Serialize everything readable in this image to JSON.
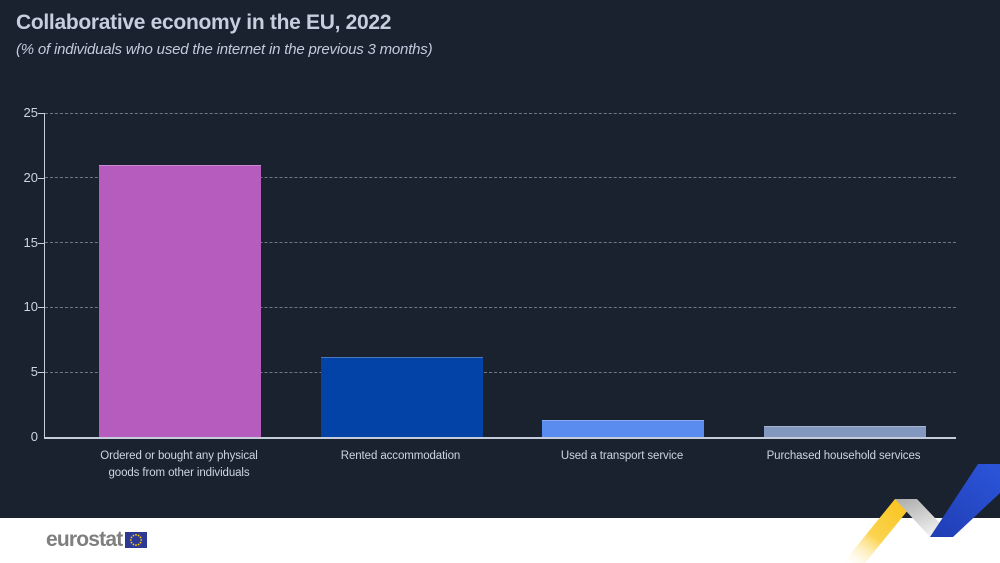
{
  "header": {
    "title": "Collaborative economy in the EU, 2022",
    "subtitle": "(% of individuals who used the internet in the previous 3 months)"
  },
  "chart_data": {
    "type": "bar",
    "categories": [
      "Ordered or bought any physical goods from other individuals",
      "Rented accommodation",
      "Used a transport service",
      "Purchased household services"
    ],
    "values": [
      20.9,
      6.1,
      1.2,
      0.8
    ],
    "bar_colors": [
      "#b55cbe",
      "#0343a8",
      "#5a8bef",
      "#8398bf"
    ],
    "title": "Collaborative economy in the EU, 2022",
    "subtitle": "(% of individuals who used the internet in the previous 3 months)",
    "xlabel": "",
    "ylabel": "",
    "ylim": [
      0,
      25
    ],
    "yticks": [
      0,
      5,
      10,
      15,
      20,
      25
    ],
    "grid": "horizontal-dashed",
    "legend": "none",
    "background": "#1a212f"
  },
  "colors": {
    "background": "#1a212f",
    "text_light": "#c7cfdf",
    "axis": "#c6cdda",
    "grid": "#8b93a5",
    "footer_background": "#ffffff",
    "logo_gray": "#7f7f7f",
    "flag_blue": "#2c3a96",
    "star_yellow": "#ffcc00",
    "ribbon_yellow": "#f9c31b",
    "ribbon_blue": "#2447c9"
  },
  "footer": {
    "logo_text": "eurostat"
  }
}
